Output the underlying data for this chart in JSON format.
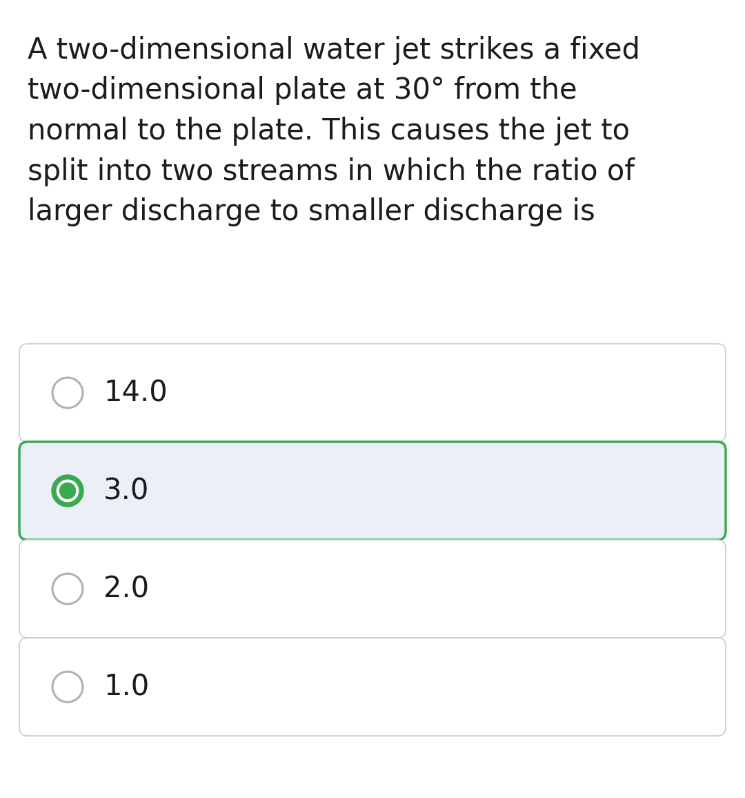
{
  "background_color": "#ffffff",
  "question_text": "A two-dimensional water jet strikes a fixed\ntwo-dimensional plate at 30° from the\nnormal to the plate. This causes the jet to\nsplit into two streams in which the ratio of\nlarger discharge to smaller discharge is",
  "options": [
    "14.0",
    "3.0",
    "2.0",
    "1.0"
  ],
  "correct_index": 1,
  "question_font_size": 30,
  "option_font_size": 30,
  "text_color": "#1c1c1e",
  "option_text_color": "#1c1c1e",
  "box_normal_bg": "#ffffff",
  "box_selected_bg": "#eceef8",
  "box_border_normal": "#cccccc",
  "box_border_selected": "#3aaa50",
  "radio_unselected_color": "#b0b0b0",
  "radio_selected_color": "#3aaa50",
  "fig_width": 10.8,
  "fig_height": 11.56,
  "dpi": 100
}
